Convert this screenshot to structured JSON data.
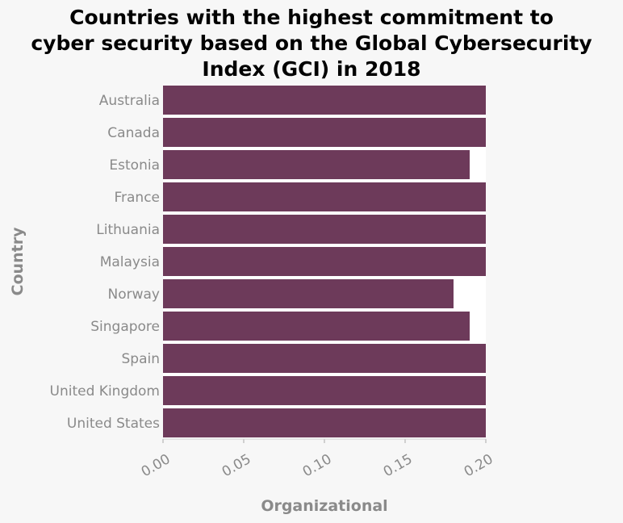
{
  "chart_data": {
    "type": "bar",
    "orientation": "horizontal",
    "title_lines": [
      "Countries with the highest commitment to",
      "cyber security based on the Global Cybersecurity",
      "Index (GCI) in 2018"
    ],
    "title": "Countries with the highest commitment to cyber security based on the Global Cybersecurity Index (GCI) in 2018",
    "xlabel": "Organizational",
    "ylabel": "Country",
    "xlim": [
      0,
      0.2
    ],
    "x_ticks": [
      "0.00",
      "0.05",
      "0.10",
      "0.15",
      "0.20"
    ],
    "grid": false,
    "bar_color": "#6d3a5a",
    "categories": [
      "Australia",
      "Canada",
      "Estonia",
      "France",
      "Lithuania",
      "Malaysia",
      "Norway",
      "Singapore",
      "Spain",
      "United Kingdom",
      "United States"
    ],
    "values": [
      0.2,
      0.2,
      0.19,
      0.2,
      0.2,
      0.2,
      0.18,
      0.19,
      0.2,
      0.2,
      0.2
    ]
  }
}
